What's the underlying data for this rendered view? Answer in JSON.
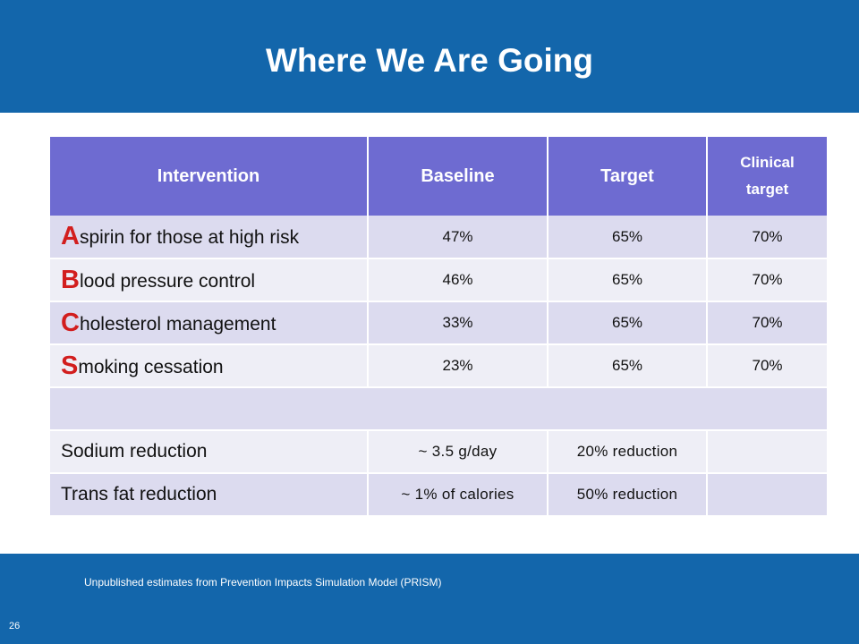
{
  "slide": {
    "title": "Where We Are Going",
    "source_note": "Unpublished estimates from Prevention Impacts Simulation Model (PRISM)",
    "page_number": "26"
  },
  "colors": {
    "banner": "#1366ab",
    "header_fill": "#6e6bd1",
    "row_odd": "#dcdbef",
    "row_even": "#eeeef6",
    "initial_accent": "#d21e1e"
  },
  "table": {
    "headers": [
      "Intervention",
      "Baseline",
      "Target",
      "Clinical target"
    ],
    "rows": [
      {
        "initial": "A",
        "rest": "spirin for those at high risk",
        "baseline": "47%",
        "target": "65%",
        "clinical": "70%"
      },
      {
        "initial": "B",
        "rest": "lood pressure control",
        "baseline": "46%",
        "target": "65%",
        "clinical": "70%"
      },
      {
        "initial": "C",
        "rest": "holesterol management",
        "baseline": "33%",
        "target": "65%",
        "clinical": "70%"
      },
      {
        "initial": "S",
        "rest": "moking cessation",
        "baseline": "23%",
        "target": "65%",
        "clinical": "70%"
      },
      {
        "label": "Sodium reduction",
        "baseline": "~ 3.5 g/day",
        "target": "20% reduction",
        "clinical": ""
      },
      {
        "label": "Trans fat reduction",
        "baseline": "~ 1% of calories",
        "target": "50% reduction",
        "clinical": ""
      }
    ]
  }
}
